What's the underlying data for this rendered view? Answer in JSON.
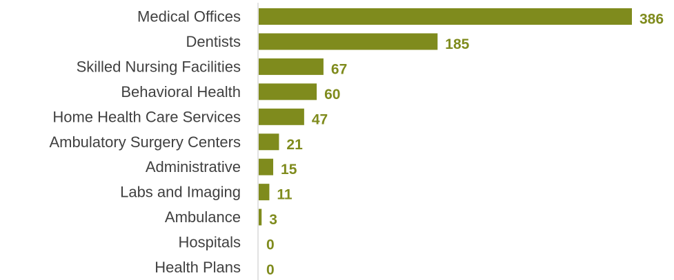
{
  "chart_data": {
    "type": "bar",
    "orientation": "horizontal",
    "categories": [
      "Medical Offices",
      "Dentists",
      "Skilled Nursing Facilities",
      "Behavioral Health ",
      "Home Health Care Services",
      "Ambulatory Surgery Centers",
      "Administrative",
      "Labs and Imaging",
      "Ambulance",
      "Hospitals",
      "Health Plans"
    ],
    "values": [
      386,
      185,
      67,
      60,
      47,
      21,
      15,
      11,
      3,
      0,
      0
    ],
    "value_labels": [
      "386",
      "185",
      "67",
      "60",
      "47",
      "21",
      "15",
      "11",
      "3",
      "0",
      "0"
    ],
    "title": "",
    "xlabel": "",
    "ylabel": "",
    "xlim": [
      0,
      386
    ],
    "grid": false,
    "data_labels": true,
    "colors": {
      "bar": "#7f8b1d",
      "value_label": "#7f8b1d",
      "category_label": "#404040",
      "axis": "#d9d9d9"
    }
  }
}
